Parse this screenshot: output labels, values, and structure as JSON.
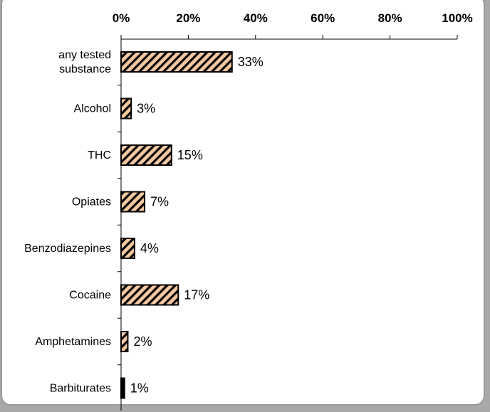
{
  "chart_data": {
    "type": "bar",
    "orientation": "horizontal",
    "categories": [
      "any tested substance",
      "Alcohol",
      "THC",
      "Opiates",
      "Benzodiazepines",
      "Cocaine",
      "Amphetamines",
      "Barbiturates"
    ],
    "category_lines": [
      [
        "any tested",
        "substance"
      ],
      [
        "Alcohol"
      ],
      [
        "THC"
      ],
      [
        "Opiates"
      ],
      [
        "Benzodiazepines"
      ],
      [
        "Cocaine"
      ],
      [
        "Amphetamines"
      ],
      [
        "Barbiturates"
      ]
    ],
    "values": [
      33,
      3,
      15,
      7,
      4,
      17,
      2,
      1
    ],
    "data_labels": [
      "33%",
      "3%",
      "15%",
      "7%",
      "4%",
      "17%",
      "2%",
      "1%"
    ],
    "xlim": [
      0,
      100
    ],
    "xticks": [
      0,
      20,
      40,
      60,
      80,
      100
    ],
    "xtick_labels": [
      "0%",
      "20%",
      "40%",
      "60%",
      "80%",
      "100%"
    ],
    "x_axis_position": "top",
    "grid": false,
    "legend": "none",
    "bar_fill": "#f8c9a0",
    "bar_hatch": "#000000",
    "bar_stroke": "#000000"
  }
}
